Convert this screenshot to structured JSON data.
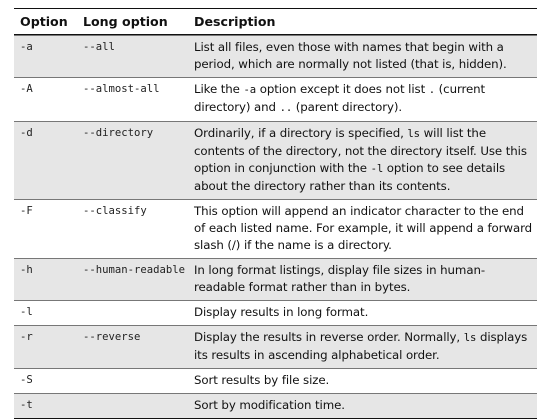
{
  "header": {
    "option": "Option",
    "long_option": "Long option",
    "description": "Description"
  },
  "rows": [
    {
      "option": "-a",
      "long_option": "--all",
      "description": [
        {
          "t": "List all files, even those with names that begin with a period, which are normally not listed (that is, hidden)."
        }
      ]
    },
    {
      "option": "-A",
      "long_option": "--almost-all",
      "description": [
        {
          "t": "Like the "
        },
        {
          "c": "-a"
        },
        {
          "t": " option except it does not list "
        },
        {
          "c": "."
        },
        {
          "t": " (current directory) and "
        },
        {
          "c": ".."
        },
        {
          "t": " (parent directory)."
        }
      ]
    },
    {
      "option": "-d",
      "long_option": "--directory",
      "description": [
        {
          "t": "Ordinarily, if a directory is specified, "
        },
        {
          "c": "ls"
        },
        {
          "t": " will list the contents of the directory, not the directory itself. Use this option in conjunction with the "
        },
        {
          "c": "-l"
        },
        {
          "t": " option to see details about the directory rather than its contents."
        }
      ]
    },
    {
      "option": "-F",
      "long_option": "--classify",
      "description": [
        {
          "t": "This option will append an indicator character to the end of each listed name. For example, it will append a forward slash (/) if the name is a directory."
        }
      ]
    },
    {
      "option": "-h",
      "long_option": "--human-readable",
      "description": [
        {
          "t": "In long format listings, display file sizes in human-readable format rather than in bytes."
        }
      ]
    },
    {
      "option": "-l",
      "long_option": "",
      "description": [
        {
          "t": "Display results in long format."
        }
      ]
    },
    {
      "option": "-r",
      "long_option": "--reverse",
      "description": [
        {
          "t": "Display the results in reverse order. Normally, "
        },
        {
          "c": "ls"
        },
        {
          "t": " displays its results in ascending alphabetical order."
        }
      ]
    },
    {
      "option": "-S",
      "long_option": "",
      "description": [
        {
          "t": "Sort results by file size."
        }
      ]
    },
    {
      "option": "-t",
      "long_option": "",
      "description": [
        {
          "t": "Sort by modification time."
        }
      ]
    }
  ]
}
